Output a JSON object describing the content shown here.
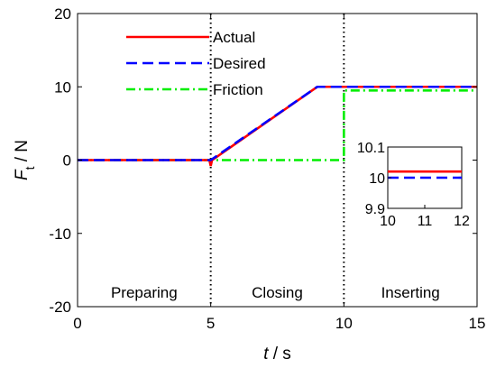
{
  "chart_data": {
    "type": "line",
    "xlabel": {
      "var": "t",
      "unit": " / s"
    },
    "ylabel": {
      "var": "F",
      "sub": "t",
      "unit": " / N"
    },
    "xlim": [
      0,
      15
    ],
    "ylim": [
      -20,
      20
    ],
    "xticks": [
      0,
      5,
      10,
      15
    ],
    "yticks": [
      -20,
      -10,
      0,
      10,
      20
    ],
    "grid": false,
    "legend_position": "top-left",
    "series": [
      {
        "name": "Actual",
        "color": "#ff0000",
        "style": "solid",
        "x": [
          0,
          4.95,
          5.0,
          5.05,
          9.0,
          15
        ],
        "y": [
          0,
          0,
          -0.8,
          0,
          10.0,
          10.0
        ]
      },
      {
        "name": "Desired",
        "color": "#0000ff",
        "style": "dashed",
        "x": [
          0,
          5.0,
          9.0,
          15
        ],
        "y": [
          0,
          0,
          10.0,
          10.0
        ]
      },
      {
        "name": "Friction",
        "color": "#00ee00",
        "style": "dashdot",
        "x": [
          0,
          10.0,
          10.0,
          15
        ],
        "y": [
          0,
          0,
          9.5,
          9.5
        ]
      }
    ],
    "phase_lines": [
      5,
      10
    ],
    "phases": [
      {
        "label": "Preparing",
        "x": 2.5
      },
      {
        "label": "Closing",
        "x": 7.5
      },
      {
        "label": "Inserting",
        "x": 12.5
      }
    ],
    "inset": {
      "xlim": [
        10,
        12
      ],
      "ylim": [
        9.9,
        10.1
      ],
      "xticks": [
        10,
        11,
        12
      ],
      "yticks": [
        9.9,
        10,
        10.1
      ],
      "series": [
        {
          "name": "Actual",
          "color": "#ff0000",
          "style": "solid",
          "x": [
            10,
            12
          ],
          "y": [
            10.02,
            10.02
          ]
        },
        {
          "name": "Desired",
          "color": "#0000ff",
          "style": "dashed",
          "x": [
            10,
            12
          ],
          "y": [
            10.0,
            10.0
          ]
        }
      ]
    }
  }
}
